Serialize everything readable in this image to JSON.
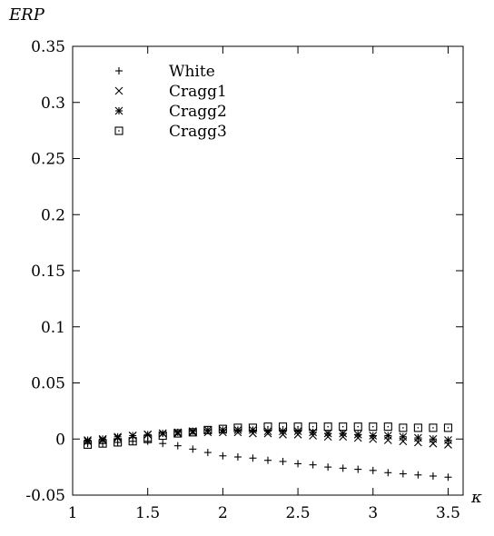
{
  "chart_data": {
    "type": "scatter",
    "title": "",
    "ylabel": "ERP",
    "xlabel": "κ",
    "xlim": [
      1,
      3.6
    ],
    "ylim": [
      -0.05,
      0.35
    ],
    "xticks": [
      1,
      1.5,
      2,
      2.5,
      3,
      3.5
    ],
    "xtick_labels": [
      "1",
      "1.5",
      "2",
      "2.5",
      "3",
      "3.5"
    ],
    "yticks": [
      -0.05,
      0,
      0.05,
      0.1,
      0.15,
      0.2,
      0.25,
      0.3,
      0.35
    ],
    "ytick_labels": [
      "-0.05",
      "0",
      "0.05",
      "0.1",
      "0.15",
      "0.2",
      "0.25",
      "0.3",
      "0.35"
    ],
    "grid": false,
    "legend_position": "top-left",
    "x": [
      1.1,
      1.2,
      1.3,
      1.4,
      1.5,
      1.6,
      1.7,
      1.8,
      1.9,
      2.0,
      2.1,
      2.2,
      2.3,
      2.4,
      2.5,
      2.6,
      2.7,
      2.8,
      2.9,
      3.0,
      3.1,
      3.2,
      3.3,
      3.4,
      3.5
    ],
    "series": [
      {
        "name": "White",
        "marker": "plus",
        "values": [
          -0.004,
          -0.004,
          -0.003,
          -0.002,
          -0.002,
          -0.004,
          -0.006,
          -0.009,
          -0.012,
          -0.015,
          -0.016,
          -0.017,
          -0.019,
          -0.02,
          -0.022,
          -0.023,
          -0.025,
          -0.026,
          -0.027,
          -0.028,
          -0.03,
          -0.031,
          -0.032,
          -0.033,
          -0.034
        ]
      },
      {
        "name": "Cragg1",
        "marker": "cross",
        "values": [
          -0.002,
          -0.001,
          0.001,
          0.003,
          0.004,
          0.005,
          0.005,
          0.006,
          0.006,
          0.006,
          0.006,
          0.005,
          0.005,
          0.004,
          0.004,
          0.003,
          0.002,
          0.002,
          0.001,
          0.0,
          -0.001,
          -0.002,
          -0.003,
          -0.004,
          -0.005
        ]
      },
      {
        "name": "Cragg2",
        "marker": "star",
        "values": [
          -0.001,
          0.0,
          0.002,
          0.003,
          0.004,
          0.005,
          0.006,
          0.007,
          0.008,
          0.008,
          0.008,
          0.008,
          0.007,
          0.007,
          0.007,
          0.006,
          0.005,
          0.005,
          0.004,
          0.003,
          0.003,
          0.002,
          0.001,
          0.0,
          -0.001
        ]
      },
      {
        "name": "Cragg3",
        "marker": "square",
        "values": [
          -0.005,
          -0.004,
          -0.003,
          -0.002,
          0.0,
          0.003,
          0.005,
          0.006,
          0.008,
          0.009,
          0.01,
          0.01,
          0.011,
          0.011,
          0.011,
          0.011,
          0.011,
          0.011,
          0.011,
          0.011,
          0.011,
          0.01,
          0.01,
          0.01,
          0.01
        ]
      }
    ]
  }
}
